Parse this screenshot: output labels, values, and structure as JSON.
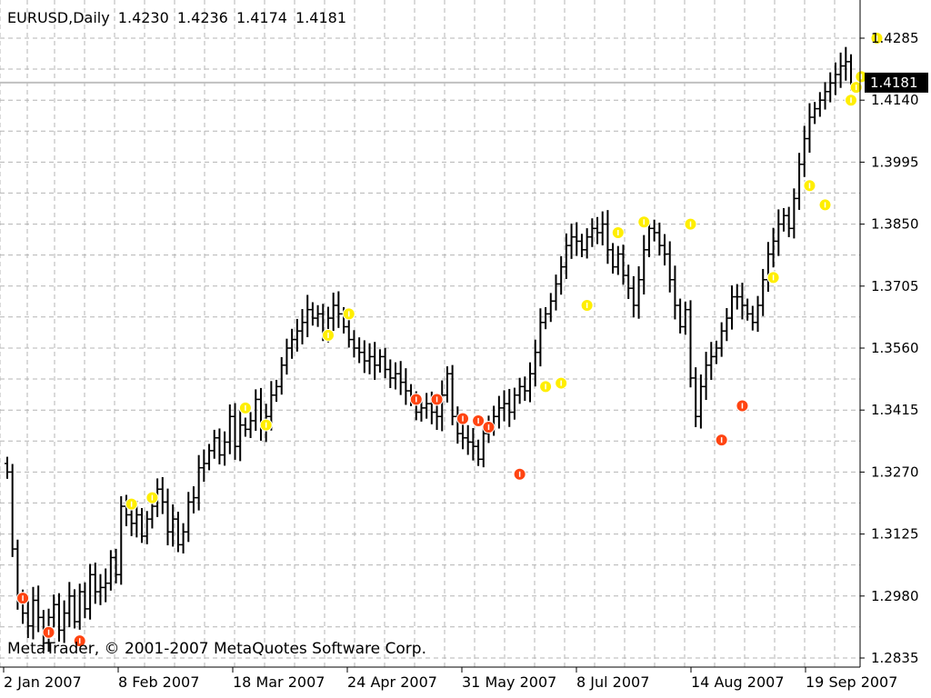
{
  "header": {
    "symbol": "EURUSD,Daily",
    "open": "1.4230",
    "high": "1.4236",
    "low": "1.4174",
    "close": "1.4181"
  },
  "copyright": "MetaTrader, © 2001-2007 MetaQuotes Software Corp.",
  "chart_data": {
    "type": "bar",
    "title": "",
    "ylim": [
      1.2835,
      1.4285
    ],
    "y_ticks": [
      "1.4285",
      "1.4140",
      "1.3995",
      "1.3850",
      "1.3705",
      "1.3560",
      "1.3415",
      "1.3270",
      "1.3125",
      "1.2980",
      "1.2835"
    ],
    "x_ticks": [
      "2 Jan 2007",
      "8 Feb 2007",
      "18 Mar 2007",
      "24 Apr 2007",
      "31 May 2007",
      "8 Jul 2007",
      "14 Aug 2007",
      "19 Sep 2007"
    ],
    "current_price": "1.4181",
    "grid": true,
    "colors": {
      "bars": "#000000",
      "grid": "#b4b4b4",
      "up_marker": "#ffee00",
      "down_marker": "#ff4411",
      "current_line": "#c0c0c0"
    },
    "close_series": [
      1.327,
      1.309,
      1.297,
      1.294,
      1.291,
      1.297,
      1.293,
      1.287,
      1.293,
      1.296,
      1.29,
      1.294,
      1.298,
      1.292,
      1.299,
      1.295,
      1.303,
      1.299,
      1.3,
      1.301,
      1.307,
      1.303,
      1.319,
      1.317,
      1.315,
      1.317,
      1.312,
      1.316,
      1.319,
      1.323,
      1.32,
      1.313,
      1.316,
      1.31,
      1.313,
      1.32,
      1.321,
      1.328,
      1.329,
      1.332,
      1.335,
      1.331,
      1.334,
      1.34,
      1.333,
      1.338,
      1.337,
      1.339,
      1.344,
      1.337,
      1.34,
      1.345,
      1.347,
      1.352,
      1.356,
      1.358,
      1.36,
      1.362,
      1.365,
      1.363,
      1.364,
      1.36,
      1.363,
      1.366,
      1.364,
      1.361,
      1.358,
      1.356,
      1.355,
      1.353,
      1.354,
      1.352,
      1.354,
      1.351,
      1.349,
      1.35,
      1.348,
      1.346,
      1.344,
      1.341,
      1.342,
      1.343,
      1.341,
      1.34,
      1.345,
      1.35,
      1.34,
      1.336,
      1.335,
      1.334,
      1.333,
      1.33,
      1.336,
      1.338,
      1.34,
      1.342,
      1.343,
      1.341,
      1.345,
      1.347,
      1.346,
      1.35,
      1.355,
      1.362,
      1.364,
      1.367,
      1.371,
      1.375,
      1.38,
      1.382,
      1.381,
      1.379,
      1.382,
      1.384,
      1.383,
      1.385,
      1.379,
      1.375,
      1.378,
      1.373,
      1.37,
      1.366,
      1.372,
      1.379,
      1.384,
      1.383,
      1.38,
      1.378,
      1.372,
      1.366,
      1.361,
      1.365,
      1.349,
      1.34,
      1.347,
      1.352,
      1.354,
      1.356,
      1.36,
      1.363,
      1.368,
      1.368,
      1.366,
      1.364,
      1.362,
      1.366,
      1.372,
      1.378,
      1.381,
      1.385,
      1.387,
      1.384,
      1.391,
      1.399,
      1.405,
      1.41,
      1.412,
      1.414,
      1.416,
      1.418,
      1.42,
      1.422,
      1.423,
      1.418
    ],
    "up_markers": [
      {
        "i": 24,
        "v": 1.3195
      },
      {
        "i": 28,
        "v": 1.321
      },
      {
        "i": 46,
        "v": 1.342
      },
      {
        "i": 50,
        "v": 1.338
      },
      {
        "i": 62,
        "v": 1.359
      },
      {
        "i": 66,
        "v": 1.364
      },
      {
        "i": 104,
        "v": 1.347
      },
      {
        "i": 107,
        "v": 1.3478
      },
      {
        "i": 112,
        "v": 1.366
      },
      {
        "i": 118,
        "v": 1.383
      },
      {
        "i": 123,
        "v": 1.3855
      },
      {
        "i": 132,
        "v": 1.385
      },
      {
        "i": 148,
        "v": 1.3725
      },
      {
        "i": 155,
        "v": 1.394
      },
      {
        "i": 158,
        "v": 1.3895
      },
      {
        "i": 163,
        "v": 1.414
      },
      {
        "i": 164,
        "v": 1.417
      },
      {
        "i": 165,
        "v": 1.4195
      },
      {
        "i": 168,
        "v": 1.4285
      }
    ],
    "down_markers": [
      {
        "i": 3,
        "v": 1.2975
      },
      {
        "i": 8,
        "v": 1.2895
      },
      {
        "i": 14,
        "v": 1.2875
      },
      {
        "i": 79,
        "v": 1.344
      },
      {
        "i": 83,
        "v": 1.344
      },
      {
        "i": 88,
        "v": 1.3395
      },
      {
        "i": 91,
        "v": 1.339
      },
      {
        "i": 93,
        "v": 1.3375
      },
      {
        "i": 99,
        "v": 1.3265
      },
      {
        "i": 138,
        "v": 1.3345
      },
      {
        "i": 142,
        "v": 1.3425
      }
    ]
  }
}
